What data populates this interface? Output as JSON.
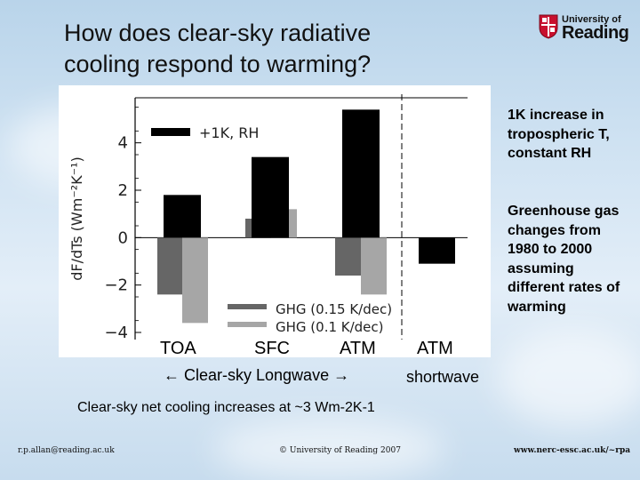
{
  "slide": {
    "title_line1": "How does clear-sky radiative",
    "title_line2": "cooling respond to warming?",
    "logo_top": "University of",
    "logo_name": "Reading",
    "note1": "1K increase in tropospheric T, constant RH",
    "note2": "Greenhouse gas changes from 1980 to 2000 assuming different rates of warming",
    "cat_toa": "TOA",
    "cat_sfc": "SFC",
    "cat_atm_lw": "ATM",
    "cat_atm_sw": "ATM",
    "longwave_label": "← Clear-sky Longwave →",
    "shortwave_label": "shortwave",
    "summary": "Clear-sky net cooling increases at ~3 Wm-2K-1",
    "footer_email": "r.p.allan@reading.ac.uk",
    "footer_copyright": "© University of Reading 2007",
    "footer_url": "www.nerc-essc.ac.uk/~rpa"
  },
  "colors": {
    "plus1k": "#000000",
    "ghg015": "#666666",
    "ghg01": "#a6a6a6"
  },
  "chart_data": {
    "type": "bar",
    "ylabel": "dF/dTs (Wm⁻²K⁻¹)",
    "ylim": [
      -4.3,
      5.9
    ],
    "yticks": [
      -4,
      -2,
      0,
      2,
      4
    ],
    "categories": [
      "TOA",
      "SFC",
      "ATM",
      "ATM SW"
    ],
    "series": [
      {
        "name": "+1K, RH",
        "values": [
          1.8,
          3.4,
          5.4,
          -1.1
        ]
      },
      {
        "name": "GHG (0.15 K/dec)",
        "values": [
          -2.4,
          0.8,
          -1.6,
          null
        ]
      },
      {
        "name": "GHG (0.1 K/dec)",
        "values": [
          -3.6,
          1.2,
          -2.4,
          null
        ]
      }
    ]
  }
}
